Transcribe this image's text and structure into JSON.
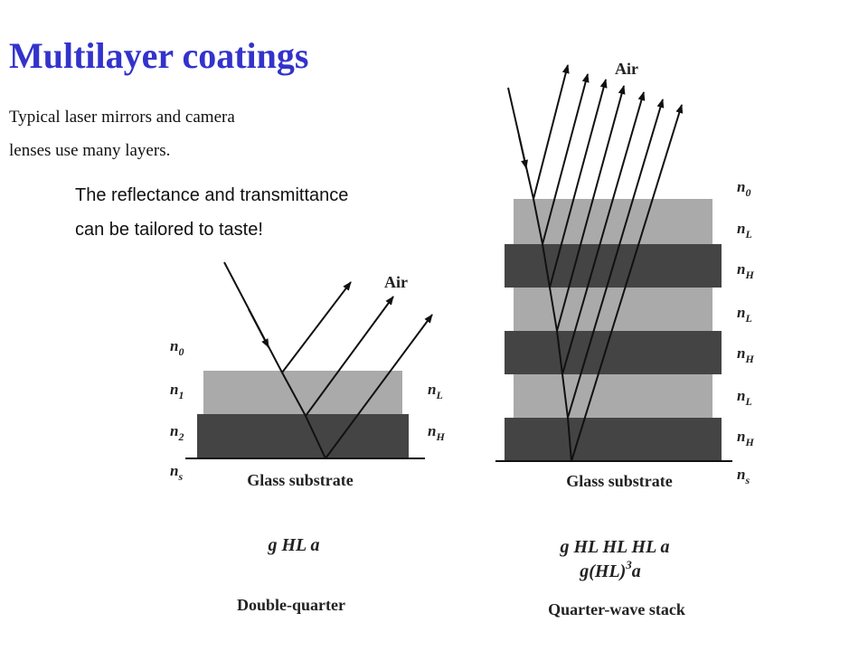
{
  "title": "Multilayer coatings",
  "intro": [
    "Typical laser mirrors and camera",
    "lenses use many layers."
  ],
  "callout": [
    "The reflectance and transmittance",
    "can be tailored to taste!"
  ],
  "left_diagram": {
    "air": "Air",
    "left_labels": [
      {
        "base": "n",
        "sub": "0"
      },
      {
        "base": "n",
        "sub": "1"
      },
      {
        "base": "n",
        "sub": "2"
      },
      {
        "base": "n",
        "sub": "s"
      }
    ],
    "right_labels": [
      {
        "base": "n",
        "sub": "L"
      },
      {
        "base": "n",
        "sub": "H"
      }
    ],
    "substrate": "Glass substrate",
    "formula": "g HL a",
    "caption": "Double-quarter"
  },
  "right_diagram": {
    "air": "Air",
    "labels": [
      {
        "base": "n",
        "sub": "0"
      },
      {
        "base": "n",
        "sub": "L"
      },
      {
        "base": "n",
        "sub": "H"
      },
      {
        "base": "n",
        "sub": "L"
      },
      {
        "base": "n",
        "sub": "H"
      },
      {
        "base": "n",
        "sub": "L"
      },
      {
        "base": "n",
        "sub": "H"
      },
      {
        "base": "n",
        "sub": "s"
      }
    ],
    "substrate": "Glass substrate",
    "formula_1": "g HL HL HL a",
    "formula_2": {
      "text": "g(HL)",
      "sup": "3",
      "tail": "a"
    },
    "caption": "Quarter-wave stack"
  }
}
